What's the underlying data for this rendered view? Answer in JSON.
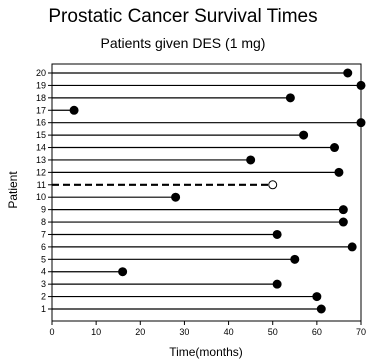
{
  "chart_data": {
    "type": "lollipop",
    "title": "Prostatic Cancer Survival Times",
    "subtitle": "Patients given DES (1 mg)",
    "xlabel": "Time(months)",
    "ylabel": "Patient",
    "xlim": [
      0,
      70
    ],
    "ylim": [
      1,
      20
    ],
    "x_ticks": [
      0,
      10,
      20,
      30,
      40,
      50,
      60,
      70
    ],
    "y_ticks": [
      1,
      2,
      3,
      4,
      5,
      6,
      7,
      8,
      9,
      10,
      11,
      12,
      13,
      14,
      15,
      16,
      17,
      18,
      19,
      20
    ],
    "grid": false,
    "legend": "none",
    "marker_legend": {
      "filled": "#000000",
      "open": "#ffffff"
    },
    "patients": [
      {
        "patient": 1,
        "time": 61,
        "marker": "filled",
        "line": "solid"
      },
      {
        "patient": 2,
        "time": 60,
        "marker": "filled",
        "line": "solid"
      },
      {
        "patient": 3,
        "time": 51,
        "marker": "filled",
        "line": "solid"
      },
      {
        "patient": 4,
        "time": 16,
        "marker": "filled",
        "line": "solid"
      },
      {
        "patient": 5,
        "time": 55,
        "marker": "filled",
        "line": "solid"
      },
      {
        "patient": 6,
        "time": 68,
        "marker": "filled",
        "line": "solid"
      },
      {
        "patient": 7,
        "time": 51,
        "marker": "filled",
        "line": "solid"
      },
      {
        "patient": 8,
        "time": 66,
        "marker": "filled",
        "line": "solid"
      },
      {
        "patient": 9,
        "time": 66,
        "marker": "filled",
        "line": "solid"
      },
      {
        "patient": 10,
        "time": 28,
        "marker": "filled",
        "line": "solid"
      },
      {
        "patient": 11,
        "time": 50,
        "marker": "open",
        "line": "dashed"
      },
      {
        "patient": 12,
        "time": 65,
        "marker": "filled",
        "line": "solid"
      },
      {
        "patient": 13,
        "time": 45,
        "marker": "filled",
        "line": "solid"
      },
      {
        "patient": 14,
        "time": 64,
        "marker": "filled",
        "line": "solid"
      },
      {
        "patient": 15,
        "time": 57,
        "marker": "filled",
        "line": "solid"
      },
      {
        "patient": 16,
        "time": 70,
        "marker": "filled",
        "line": "solid"
      },
      {
        "patient": 17,
        "time": 5,
        "marker": "filled",
        "line": "solid"
      },
      {
        "patient": 18,
        "time": 54,
        "marker": "filled",
        "line": "solid"
      },
      {
        "patient": 19,
        "time": 70,
        "marker": "filled",
        "line": "solid"
      },
      {
        "patient": 20,
        "time": 67,
        "marker": "filled",
        "line": "solid"
      }
    ]
  }
}
